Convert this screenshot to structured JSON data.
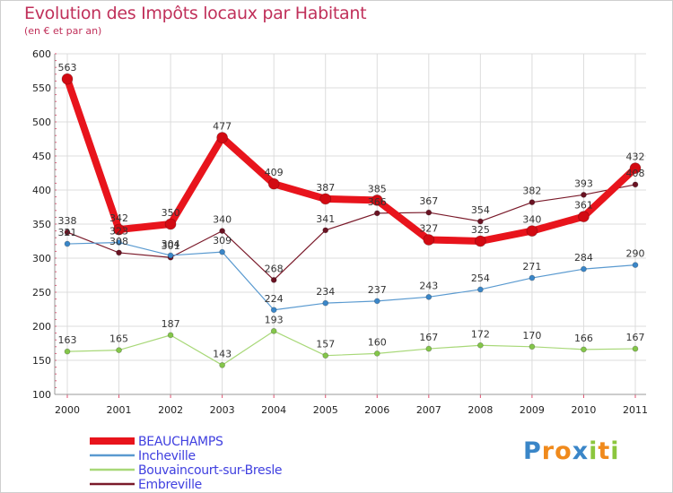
{
  "chart_data": {
    "type": "line",
    "title": "Evolution des Impôts locaux par Habitant",
    "subtitle": "(en € et par an)",
    "xlabel": "",
    "ylabel": "",
    "ylim": [
      100,
      600
    ],
    "yticks": [
      100,
      150,
      200,
      250,
      300,
      350,
      400,
      450,
      500,
      550,
      600
    ],
    "categories": [
      "2000",
      "2001",
      "2002",
      "2003",
      "2004",
      "2005",
      "2006",
      "2007",
      "2008",
      "2009",
      "2010",
      "2011"
    ],
    "grid": true,
    "legend_position": "bottom-left",
    "series": [
      {
        "name": "Embreville",
        "color": "#7a1a2a",
        "point": "#6a1222",
        "width": 1.2,
        "radius": 3,
        "values": [
          338,
          308,
          301,
          340,
          268,
          341,
          366,
          367,
          354,
          382,
          393,
          408
        ],
        "labels": [
          "338",
          "308",
          "301",
          "340",
          "268",
          "341",
          "366",
          "367",
          "354",
          "382",
          "393",
          "408"
        ]
      },
      {
        "name": "Incheville",
        "color": "#5a9ad0",
        "point": "#3a86c8",
        "width": 1.2,
        "radius": 3,
        "values": [
          321,
          323,
          304,
          309,
          224,
          234,
          237,
          243,
          254,
          271,
          284,
          290
        ],
        "labels": [
          "321",
          "323",
          "304",
          "309",
          "224",
          "234",
          "237",
          "243",
          "254",
          "271",
          "284",
          "290"
        ]
      },
      {
        "name": "Bouvaincourt-sur-Bresle",
        "color": "#a8d878",
        "point": "#84c64a",
        "width": 1.2,
        "radius": 3,
        "values": [
          163,
          165,
          187,
          143,
          193,
          157,
          160,
          167,
          172,
          170,
          166,
          167
        ],
        "labels": [
          "163",
          "165",
          "187",
          "143",
          "193",
          "157",
          "160",
          "167",
          "172",
          "170",
          "166",
          "167"
        ]
      },
      {
        "name": "BEAUCHAMPS",
        "color": "#e8141c",
        "point": "#d20a12",
        "width": 8,
        "radius": 6,
        "values": [
          563,
          342,
          350,
          477,
          409,
          387,
          385,
          327,
          325,
          340,
          361,
          432
        ],
        "labels": [
          "563",
          "342",
          "350",
          "477",
          "409",
          "387",
          "385",
          "327",
          "325",
          "340",
          "361",
          "432"
        ]
      }
    ],
    "legend": [
      "BEAUCHAMPS",
      "Incheville",
      "Bouvaincourt-sur-Bresle",
      "Embreville"
    ],
    "legend_colors": [
      "#e8141c",
      "#5a9ad0",
      "#a8d878",
      "#7a1a2a"
    ]
  },
  "brand": {
    "letters": [
      "P",
      "r",
      "o",
      "x",
      "i",
      "t",
      "i"
    ],
    "colors": [
      "#3a86c8",
      "#f08a1c",
      "#f08a1c",
      "#3a86c8",
      "#8cc63e",
      "#f08a1c",
      "#8cc63e"
    ]
  },
  "colors": {
    "title": "#c0305a",
    "axis_text": "#222222",
    "legend_text": "#4040e0",
    "grid": "#dcdcdc",
    "tick": "#e05070"
  }
}
